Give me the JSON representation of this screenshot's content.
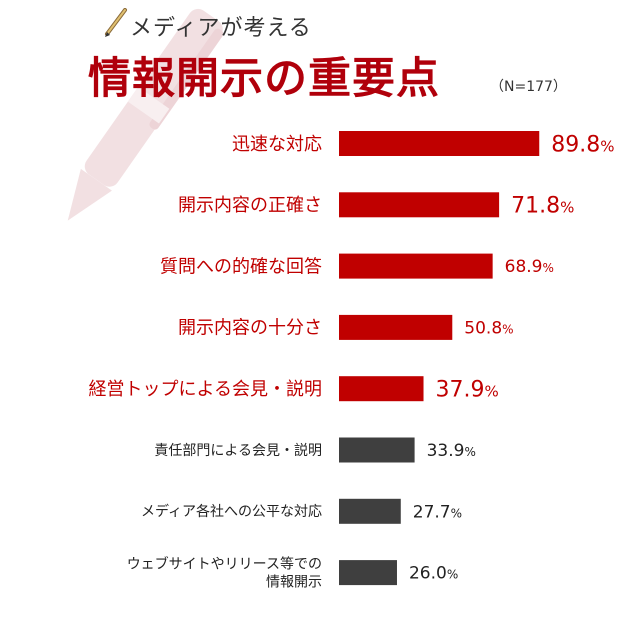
{
  "header": {
    "subtitle": "メディアが考える",
    "title": "情報開示の重要点",
    "sample": "（N=177）"
  },
  "colors": {
    "highlight": "#c00000",
    "normal": "#3f3f3f",
    "title": "#b0000b",
    "pen": "#e8c8cc"
  },
  "chart_data": {
    "type": "bar",
    "orientation": "horizontal",
    "unit": "%",
    "xlim": [
      0,
      100
    ],
    "grid": false,
    "categories": [
      "迅速な対応",
      "開示内容の正確さ",
      "質問への的確な回答",
      "開示内容の十分さ",
      "経営トップによる会見・説明",
      "責任部門による会見・説明",
      "メディア各社への公平な対応",
      "ウェブサイトやリリース等での\n情報開示"
    ],
    "values": [
      89.8,
      71.8,
      68.9,
      50.8,
      37.9,
      33.9,
      27.7,
      26.0
    ],
    "highlighted": [
      true,
      true,
      true,
      true,
      true,
      false,
      false,
      false
    ]
  }
}
